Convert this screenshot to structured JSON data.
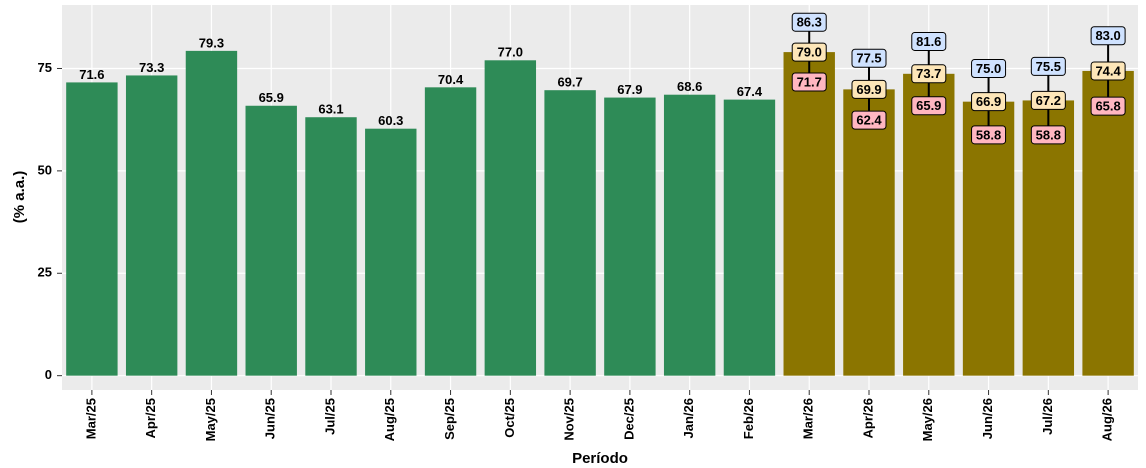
{
  "chart_data": {
    "type": "bar",
    "x_label": "Período",
    "y_label": "(% a.a.)",
    "categories": [
      "Mar/25",
      "Apr/25",
      "May/25",
      "Jun/25",
      "Jul/25",
      "Aug/25",
      "Sep/25",
      "Oct/25",
      "Nov/25",
      "Dec/25",
      "Jan/26",
      "Feb/26",
      "Mar/26",
      "Apr/26",
      "May/26",
      "Jun/26",
      "Jul/26",
      "Aug/26"
    ],
    "series": [
      {
        "color": "#2e8b57",
        "values": [
          71.6,
          73.3,
          79.3,
          65.9,
          63.1,
          60.3,
          70.4,
          77.0,
          69.7,
          67.9,
          68.6,
          67.4,
          null,
          null,
          null,
          null,
          null,
          null
        ],
        "value_labels": [
          "71.6",
          "73.3",
          "79.3",
          "65.9",
          "63.1",
          "60.3",
          "70.4",
          "77.0",
          "69.7",
          "67.9",
          "68.6",
          "67.4",
          null,
          null,
          null,
          null,
          null,
          null
        ]
      },
      {
        "color": "#8b7500",
        "values": [
          null,
          null,
          null,
          null,
          null,
          null,
          null,
          null,
          null,
          null,
          null,
          null,
          79.0,
          69.9,
          73.7,
          66.9,
          67.2,
          74.4
        ],
        "value_labels": [
          null,
          null,
          null,
          null,
          null,
          null,
          null,
          null,
          null,
          null,
          null,
          null,
          "79.0",
          "69.9",
          "73.7",
          "66.9",
          "67.2",
          "74.4"
        ],
        "upper": [
          null,
          null,
          null,
          null,
          null,
          null,
          null,
          null,
          null,
          null,
          null,
          null,
          86.3,
          77.5,
          81.6,
          75.0,
          75.5,
          83.0
        ],
        "upper_labels": [
          null,
          null,
          null,
          null,
          null,
          null,
          null,
          null,
          null,
          null,
          null,
          null,
          "86.3",
          "77.5",
          "81.6",
          "75.0",
          "75.5",
          "83.0"
        ],
        "lower": [
          null,
          null,
          null,
          null,
          null,
          null,
          null,
          null,
          null,
          null,
          null,
          null,
          71.7,
          62.4,
          65.9,
          58.8,
          58.8,
          65.8
        ],
        "lower_labels": [
          null,
          null,
          null,
          null,
          null,
          null,
          null,
          null,
          null,
          null,
          null,
          null,
          "71.7",
          "62.4",
          "65.9",
          "58.8",
          "58.8",
          "65.8"
        ]
      }
    ],
    "ylim": [
      -3.5,
      90.5
    ],
    "yticks": [
      0,
      25,
      50,
      75
    ],
    "grid": true
  }
}
